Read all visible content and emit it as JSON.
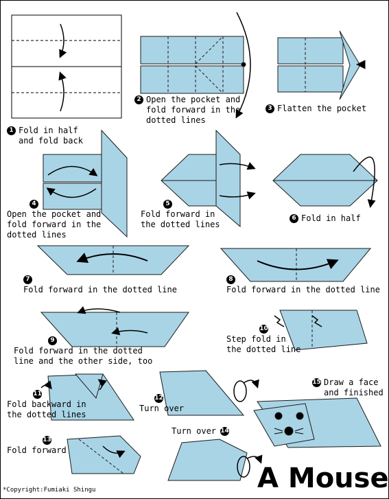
{
  "colors": {
    "paper": "#a9d4e6",
    "line": "#1a1a1a",
    "bg": "#ffffff"
  },
  "steps": [
    {
      "n": "1",
      "text": "Fold in half\nand fold back"
    },
    {
      "n": "2",
      "text": "Open the pocket and\nfold forward in the\ndotted lines"
    },
    {
      "n": "3",
      "text": "Flatten the pocket"
    },
    {
      "n": "4",
      "text": "Open the pocket and\nfold forward in the\ndotted lines"
    },
    {
      "n": "5",
      "text": "Fold forward in\nthe dotted lines"
    },
    {
      "n": "6",
      "text": "Fold in half"
    },
    {
      "n": "7",
      "text": "Fold forward in the dotted line"
    },
    {
      "n": "8",
      "text": "Fold forward in the dotted line"
    },
    {
      "n": "9",
      "text": "Fold forward in the dotted\nline and the other side, too"
    },
    {
      "n": "10",
      "text": "Step fold in\nthe dotted line"
    },
    {
      "n": "11",
      "text": "Fold backward in\nthe dotted lines"
    },
    {
      "n": "12",
      "text": "Turn over"
    },
    {
      "n": "13",
      "text": "Fold forward"
    },
    {
      "n": "14",
      "text": "Turn over"
    },
    {
      "n": "15",
      "text": "Draw a face\nand finished"
    }
  ],
  "title": "A Mouse",
  "copyright": "*Copyright:Fumiaki Shingu"
}
